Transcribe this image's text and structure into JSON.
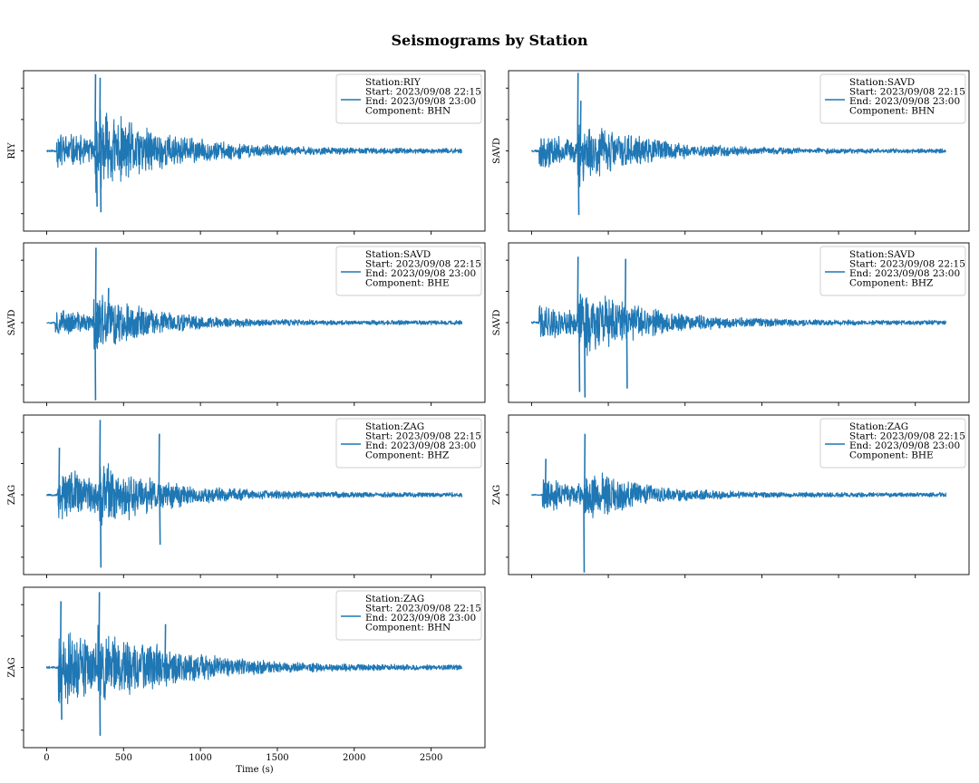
{
  "title": "Seismograms by Station",
  "colors": {
    "trace": "#1f77b4",
    "frame": "#000000",
    "legend_border": "#cccccc"
  },
  "xlabel": "Time (s)",
  "chart_data": [
    {
      "type": "line",
      "station": "RIY",
      "component": "BHN",
      "ylabel": "RIY",
      "legend": [
        "Station:RIY",
        "Start: 2023/09/08 22:15",
        "End: 2023/09/08 23:00",
        "Component: BHN"
      ],
      "xlim": [
        -150,
        2850
      ],
      "ylim": [
        -1.15,
        1.15
      ],
      "x_start": 0,
      "x_end": 2700,
      "p_arrival": 65,
      "s_arrival": 315,
      "noise_level": 0.02,
      "p_amp": 0.32,
      "s_amp": 0.7,
      "decay": 1.8,
      "seed": 11,
      "spikes": [
        {
          "x": 315,
          "y": 1.1
        },
        {
          "x": 325,
          "y": -0.8
        },
        {
          "x": 345,
          "y": 1.05
        },
        {
          "x": 350,
          "y": -0.88
        }
      ]
    },
    {
      "type": "line",
      "station": "SAVD",
      "component": "BHN",
      "ylabel": "SAVD",
      "legend": [
        "Station:SAVD",
        "Start: 2023/09/08 22:15",
        "End: 2023/09/08 23:00",
        "Component: BHN"
      ],
      "xlim": [
        -150,
        2850
      ],
      "ylim": [
        -1.15,
        1.15
      ],
      "x_start": 0,
      "x_end": 2700,
      "p_arrival": 50,
      "s_arrival": 300,
      "noise_level": 0.02,
      "p_amp": 0.28,
      "s_amp": 0.52,
      "decay": 2.0,
      "seed": 23,
      "spikes": [
        {
          "x": 300,
          "y": 1.12
        },
        {
          "x": 305,
          "y": -0.92
        },
        {
          "x": 318,
          "y": 0.72
        }
      ]
    },
    {
      "type": "line",
      "station": "SAVD",
      "component": "BHE",
      "ylabel": "SAVD",
      "legend": [
        "Station:SAVD",
        "Start: 2023/09/08 22:15",
        "End: 2023/09/08 23:00",
        "Component: BHE"
      ],
      "xlim": [
        -150,
        2850
      ],
      "ylim": [
        -1.15,
        1.15
      ],
      "x_start": 0,
      "x_end": 2700,
      "p_arrival": 55,
      "s_arrival": 305,
      "noise_level": 0.015,
      "p_amp": 0.22,
      "s_amp": 0.5,
      "decay": 2.2,
      "seed": 37,
      "spikes": [
        {
          "x": 318,
          "y": 1.08
        },
        {
          "x": 315,
          "y": -1.12
        },
        {
          "x": 400,
          "y": 0.5
        }
      ]
    },
    {
      "type": "line",
      "station": "SAVD",
      "component": "BHZ",
      "ylabel": "SAVD",
      "legend": [
        "Station:SAVD",
        "Start: 2023/09/08 22:15",
        "End: 2023/09/08 23:00",
        "Component: BHZ"
      ],
      "xlim": [
        -150,
        2850
      ],
      "ylim": [
        -1.15,
        1.15
      ],
      "x_start": 0,
      "x_end": 2700,
      "p_arrival": 50,
      "s_arrival": 300,
      "noise_level": 0.02,
      "p_amp": 0.3,
      "s_amp": 0.55,
      "decay": 1.9,
      "seed": 41,
      "spikes": [
        {
          "x": 300,
          "y": 0.95
        },
        {
          "x": 310,
          "y": -1.0
        },
        {
          "x": 345,
          "y": -1.08
        },
        {
          "x": 610,
          "y": 0.92
        },
        {
          "x": 620,
          "y": -0.95
        }
      ]
    },
    {
      "type": "line",
      "station": "ZAG",
      "component": "BHZ",
      "ylabel": "ZAG",
      "legend": [
        "Station:ZAG",
        "Start: 2023/09/08 22:15",
        "End: 2023/09/08 23:00",
        "Component: BHZ"
      ],
      "xlim": [
        -150,
        2850
      ],
      "ylim": [
        -1.15,
        1.15
      ],
      "x_start": 0,
      "x_end": 2700,
      "p_arrival": 70,
      "s_arrival": 340,
      "noise_level": 0.02,
      "p_amp": 0.45,
      "s_amp": 0.55,
      "decay": 1.9,
      "seed": 53,
      "spikes": [
        {
          "x": 80,
          "y": 0.68
        },
        {
          "x": 345,
          "y": 1.08
        },
        {
          "x": 350,
          "y": -1.05
        },
        {
          "x": 730,
          "y": 0.88
        },
        {
          "x": 735,
          "y": -0.72
        }
      ]
    },
    {
      "type": "line",
      "station": "ZAG",
      "component": "BHE",
      "ylabel": "ZAG",
      "legend": [
        "Station:ZAG",
        "Start: 2023/09/08 22:15",
        "End: 2023/09/08 23:00",
        "Component: BHE"
      ],
      "xlim": [
        -150,
        2850
      ],
      "ylim": [
        -1.15,
        1.15
      ],
      "x_start": 0,
      "x_end": 2700,
      "p_arrival": 70,
      "s_arrival": 340,
      "noise_level": 0.01,
      "p_amp": 0.28,
      "s_amp": 0.42,
      "decay": 2.4,
      "seed": 67,
      "spikes": [
        {
          "x": 90,
          "y": 0.52
        },
        {
          "x": 340,
          "y": -1.12
        },
        {
          "x": 345,
          "y": 0.88
        }
      ]
    },
    {
      "type": "line",
      "station": "ZAG",
      "component": "BHN",
      "ylabel": "ZAG",
      "legend": [
        "Station:ZAG",
        "Start: 2023/09/08 22:15",
        "End: 2023/09/08 23:00",
        "Component: BHN"
      ],
      "xlim": [
        -150,
        2850
      ],
      "ylim": [
        -1.15,
        1.15
      ],
      "x_start": 0,
      "x_end": 2700,
      "p_arrival": 75,
      "s_arrival": 330,
      "noise_level": 0.02,
      "p_amp": 0.65,
      "s_amp": 0.7,
      "decay": 1.7,
      "seed": 79,
      "spikes": [
        {
          "x": 90,
          "y": 0.95
        },
        {
          "x": 95,
          "y": -0.75
        },
        {
          "x": 340,
          "y": 1.08
        },
        {
          "x": 345,
          "y": -0.98
        },
        {
          "x": 770,
          "y": 0.62
        }
      ]
    }
  ],
  "xticks": [
    0,
    500,
    1000,
    1500,
    2000,
    2500
  ]
}
